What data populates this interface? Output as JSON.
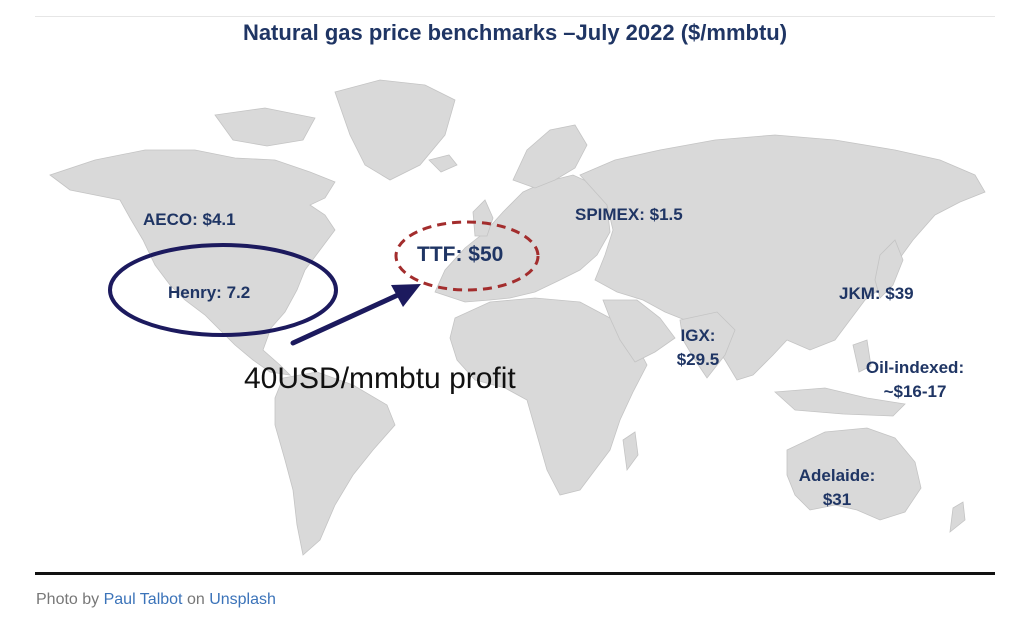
{
  "title": "Natural gas price benchmarks –July 2022 ($/mmbtu)",
  "benchmarks": {
    "aeco": "AECO: $4.1",
    "henry": "Henry: 7.2",
    "ttf": "TTF: $50",
    "spimex": "SPIMEX: $1.5",
    "jkm": "JKM: $39",
    "igx_name": "IGX:",
    "igx_value": "$29.5",
    "oil_name": "Oil-indexed:",
    "oil_value": "~$16-17",
    "adelaide_name": "Adelaide:",
    "adelaide_value": "$31"
  },
  "annotation": "40USD/mmbtu profit",
  "colors": {
    "land": "#d9d9d9",
    "label": "#1f3564",
    "ttf_circle": "#a32d2d",
    "henry_circle": "#1c1a5e"
  },
  "caption": {
    "prefix": "Photo by",
    "author": "Paul Talbot",
    "middle": "on",
    "site": "Unsplash"
  }
}
